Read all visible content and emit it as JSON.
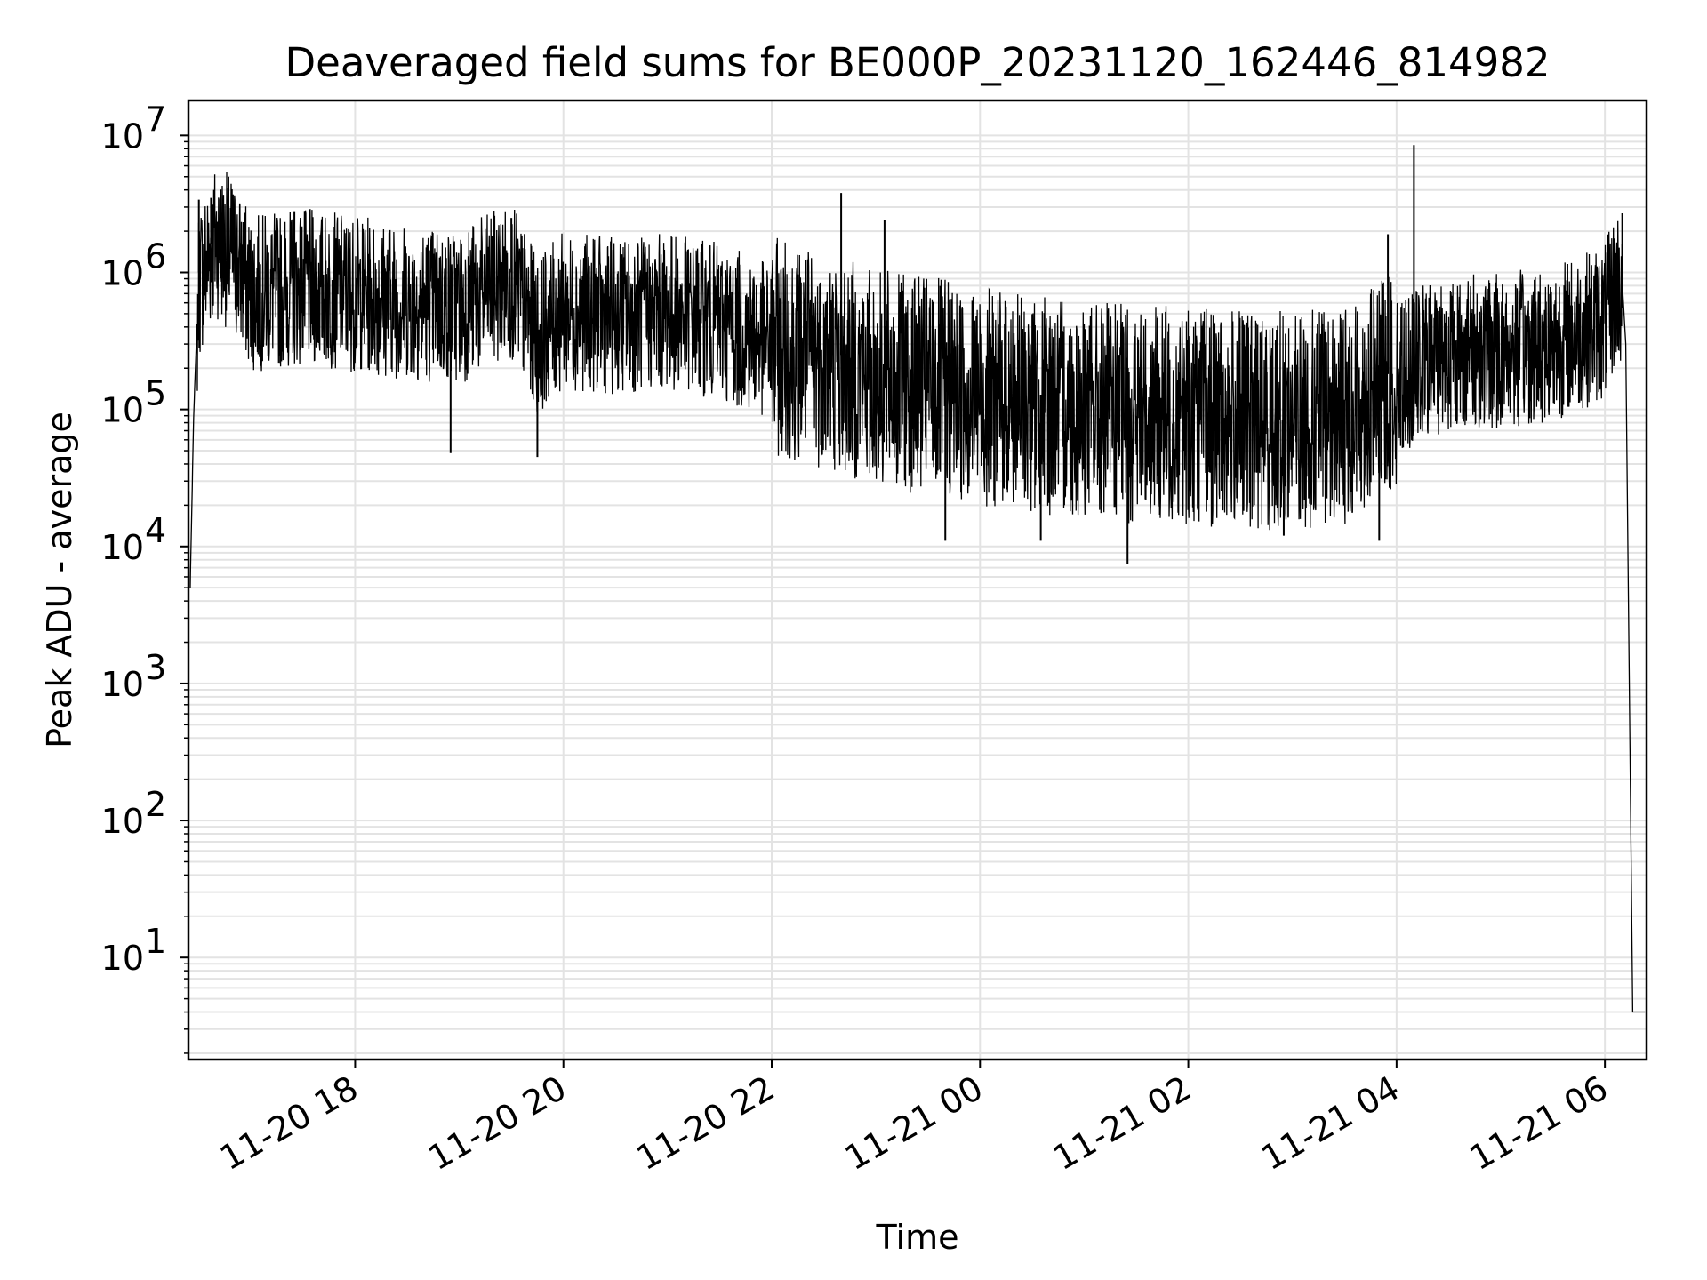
{
  "chart_data": {
    "type": "line",
    "title": "Deaveraged field sums for BE000P_20231120_162446_814982",
    "xlabel": "Time",
    "ylabel": "Peak ADU - average",
    "yscale": "log",
    "ylim": [
      1.8,
      18000000
    ],
    "xlim": [
      "2023-11-20 16:24",
      "2023-11-21 06:24"
    ],
    "grid": true,
    "line_color": "#000000",
    "grid_color": "#e3e3e3",
    "x_ticks": [
      {
        "t": "2023-11-20 18:00",
        "label": "11-20 18"
      },
      {
        "t": "2023-11-20 20:00",
        "label": "11-20 20"
      },
      {
        "t": "2023-11-20 22:00",
        "label": "11-20 22"
      },
      {
        "t": "2023-11-21 00:00",
        "label": "11-21 00"
      },
      {
        "t": "2023-11-21 02:00",
        "label": "11-21 02"
      },
      {
        "t": "2023-11-21 04:00",
        "label": "11-21 04"
      },
      {
        "t": "2023-11-21 06:00",
        "label": "11-21 06"
      }
    ],
    "y_ticks": [
      {
        "v": 10,
        "base": "10",
        "exp": "1"
      },
      {
        "v": 100,
        "base": "10",
        "exp": "2"
      },
      {
        "v": 1000,
        "base": "10",
        "exp": "3"
      },
      {
        "v": 10000,
        "base": "10",
        "exp": "4"
      },
      {
        "v": 100000,
        "base": "10",
        "exp": "5"
      },
      {
        "v": 1000000,
        "base": "10",
        "exp": "6"
      },
      {
        "v": 10000000,
        "base": "10",
        "exp": "7"
      }
    ],
    "series": [
      {
        "points": [
          [
            "2023-11-20 16:25",
            5000
          ],
          [
            "2023-11-20 16:27",
            90000
          ],
          [
            "2023-11-20 16:30",
            1000000
          ],
          [
            "2023-11-20 16:40",
            2000000
          ],
          [
            "2023-11-20 16:50",
            1500000
          ],
          [
            "2023-11-20 17:00",
            800000
          ],
          [
            "2023-11-20 17:30",
            900000
          ],
          [
            "2023-11-20 18:00",
            800000
          ],
          [
            "2023-11-20 18:30",
            700000
          ],
          [
            "2023-11-20 19:00",
            650000
          ],
          [
            "2023-11-20 19:30",
            1000000
          ],
          [
            "2023-11-20 19:45",
            400000
          ],
          [
            "2023-11-20 20:00",
            600000
          ],
          [
            "2023-11-20 20:30",
            550000
          ],
          [
            "2023-11-20 21:00",
            600000
          ],
          [
            "2023-11-20 21:30",
            500000
          ],
          [
            "2023-11-20 22:00",
            350000
          ],
          [
            "2023-11-20 22:30",
            280000
          ],
          [
            "2023-11-20 23:00",
            200000
          ],
          [
            "2023-11-20 23:30",
            180000
          ],
          [
            "2023-11-21 00:00",
            150000
          ],
          [
            "2023-11-21 00:30",
            130000
          ],
          [
            "2023-11-21 01:00",
            120000
          ],
          [
            "2023-11-21 01:30",
            110000
          ],
          [
            "2023-11-21 02:00",
            110000
          ],
          [
            "2023-11-21 02:30",
            100000
          ],
          [
            "2023-11-21 03:00",
            100000
          ],
          [
            "2023-11-21 03:30",
            110000
          ],
          [
            "2023-11-21 04:00",
            200000
          ],
          [
            "2023-11-21 04:30",
            300000
          ],
          [
            "2023-11-21 05:00",
            300000
          ],
          [
            "2023-11-21 05:30",
            350000
          ],
          [
            "2023-11-21 06:00",
            500000
          ],
          [
            "2023-11-21 06:08",
            1000000
          ],
          [
            "2023-11-21 06:12",
            300000
          ],
          [
            "2023-11-21 06:16",
            4
          ],
          [
            "2023-11-21 06:23",
            4
          ]
        ],
        "spikes": [
          [
            "2023-11-20 16:30",
            3400000
          ],
          [
            "2023-11-20 16:37",
            3500000
          ],
          [
            "2023-11-20 17:25",
            2800000
          ],
          [
            "2023-11-20 19:30",
            2500000
          ],
          [
            "2023-11-20 22:40",
            3800000
          ],
          [
            "2023-11-20 23:05",
            2400000
          ],
          [
            "2023-11-21 03:55",
            1900000
          ],
          [
            "2023-11-21 04:10",
            8500000
          ],
          [
            "2023-11-21 06:10",
            2700000
          ]
        ],
        "dips": [
          [
            "2023-11-20 18:55",
            48000
          ],
          [
            "2023-11-20 19:45",
            45000
          ],
          [
            "2023-11-20 23:40",
            11000
          ],
          [
            "2023-11-21 00:35",
            11000
          ],
          [
            "2023-11-21 01:25",
            7500
          ],
          [
            "2023-11-21 02:55",
            12000
          ],
          [
            "2023-11-21 03:50",
            11000
          ]
        ]
      }
    ]
  }
}
